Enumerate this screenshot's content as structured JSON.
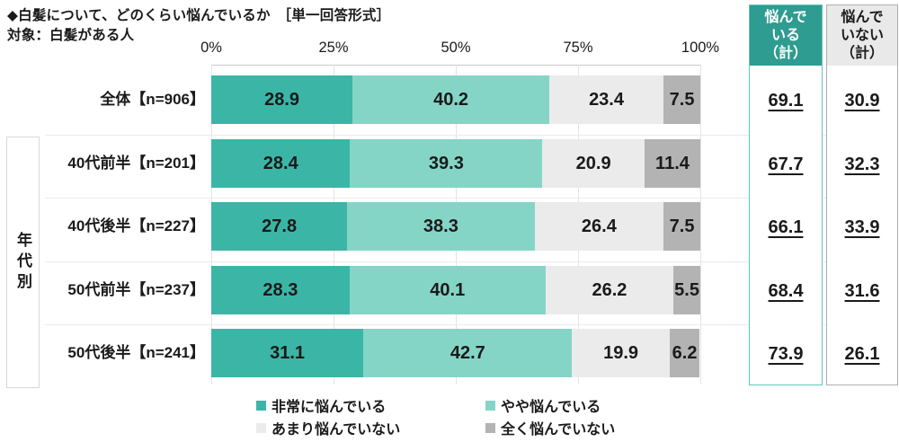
{
  "title": "◆白髪について、どのくらい悩んでいるか　［単一回答形式］",
  "subtitle": "対象：白髪がある人",
  "group_label": "年代別",
  "axis": {
    "ticks": [
      "0%",
      "25%",
      "50%",
      "75%",
      "100%"
    ]
  },
  "summary_columns": [
    {
      "header": "悩んで\nいる\n（計）",
      "header_bg": "#2E9C90",
      "header_color": "#FFFFFF",
      "border": "#5FC7BB",
      "values": [
        69.1,
        67.7,
        66.1,
        68.4,
        73.9
      ]
    },
    {
      "header": "悩んで\nいない\n（計）",
      "header_bg": "#E9E9E9",
      "header_color": "#1A1A1A",
      "border": "#AEAEAE",
      "values": [
        30.9,
        32.3,
        33.9,
        31.6,
        26.1
      ]
    }
  ],
  "chart_data": {
    "type": "bar",
    "orientation": "horizontal-stacked",
    "unit": "%",
    "xlim": [
      0,
      100
    ],
    "legend_position": "bottom",
    "grid": true,
    "categories": [
      "全体【n=906】",
      "40代前半【n=201】",
      "40代後半【n=227】",
      "50代前半【n=237】",
      "50代後半【n=241】"
    ],
    "series": [
      {
        "name": "非常に悩んでいる",
        "color": "#3BB6A6",
        "values": [
          28.9,
          28.4,
          27.8,
          28.3,
          31.1
        ]
      },
      {
        "name": "やや悩んでいる",
        "color": "#85D5C7",
        "values": [
          40.2,
          39.3,
          38.3,
          40.1,
          42.7
        ]
      },
      {
        "name": "あまり悩んでいない",
        "color": "#EBEBEB",
        "values": [
          23.4,
          20.9,
          26.4,
          26.2,
          19.9
        ]
      },
      {
        "name": "全く悩んでいない",
        "color": "#B3B3B3",
        "values": [
          7.5,
          11.4,
          7.5,
          5.5,
          6.2
        ]
      }
    ],
    "summary_totals": {
      "worried_total": [
        69.1,
        67.7,
        66.1,
        68.4,
        73.9
      ],
      "not_worried_total": [
        30.9,
        32.3,
        33.9,
        31.6,
        26.1
      ]
    }
  },
  "colors": {
    "axis": "#C9C9C9",
    "separator": "#EBEBEB",
    "text": "#1A1A1A",
    "background": "#FFFFFF"
  }
}
